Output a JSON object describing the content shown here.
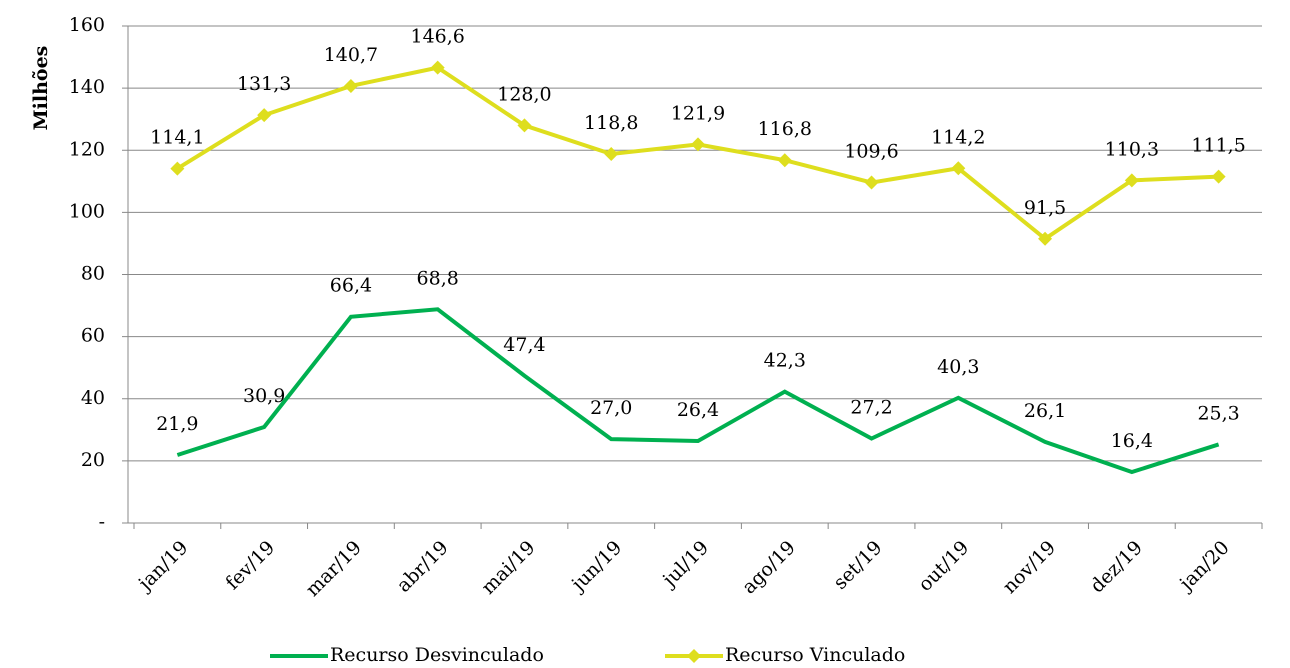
{
  "chart_data": {
    "type": "line",
    "y_label": "Milhões",
    "categories": [
      "jan/19",
      "fev/19",
      "mar/19",
      "abr/19",
      "mai/19",
      "jun/19",
      "jul/19",
      "ago/19",
      "set/19",
      "out/19",
      "nov/19",
      "dez/19",
      "jan/20"
    ],
    "series": [
      {
        "name": "Recurso Desvinculado",
        "color": "#00b050",
        "marker": "none",
        "values": [
          21.9,
          30.9,
          66.4,
          68.8,
          47.4,
          27.0,
          26.4,
          42.3,
          27.2,
          40.3,
          26.1,
          16.4,
          25.3
        ],
        "value_labels": [
          "21,9",
          "30,9",
          "66,4",
          "68,8",
          "47,4",
          "27,0",
          "26,4",
          "42,3",
          "27,2",
          "40,3",
          "26,1",
          "16,4",
          "25,3"
        ]
      },
      {
        "name": "Recurso Vinculado",
        "color": "#dede1e",
        "marker": "diamond",
        "values": [
          114.1,
          131.3,
          140.7,
          146.6,
          128.0,
          118.8,
          121.9,
          116.8,
          109.6,
          114.2,
          91.5,
          110.3,
          111.5
        ],
        "value_labels": [
          "114,1",
          "131,3",
          "140,7",
          "146,6",
          "128,0",
          "118,8",
          "121,9",
          "116,8",
          "109,6",
          "114,2",
          "91,5",
          "110,3",
          "111,5"
        ]
      }
    ],
    "ylim": [
      0,
      160
    ],
    "yticks": [
      {
        "value": 0,
        "label": "-"
      },
      20,
      40,
      60,
      80,
      100,
      120,
      140,
      160
    ],
    "grid": true,
    "legend": "bottom"
  }
}
